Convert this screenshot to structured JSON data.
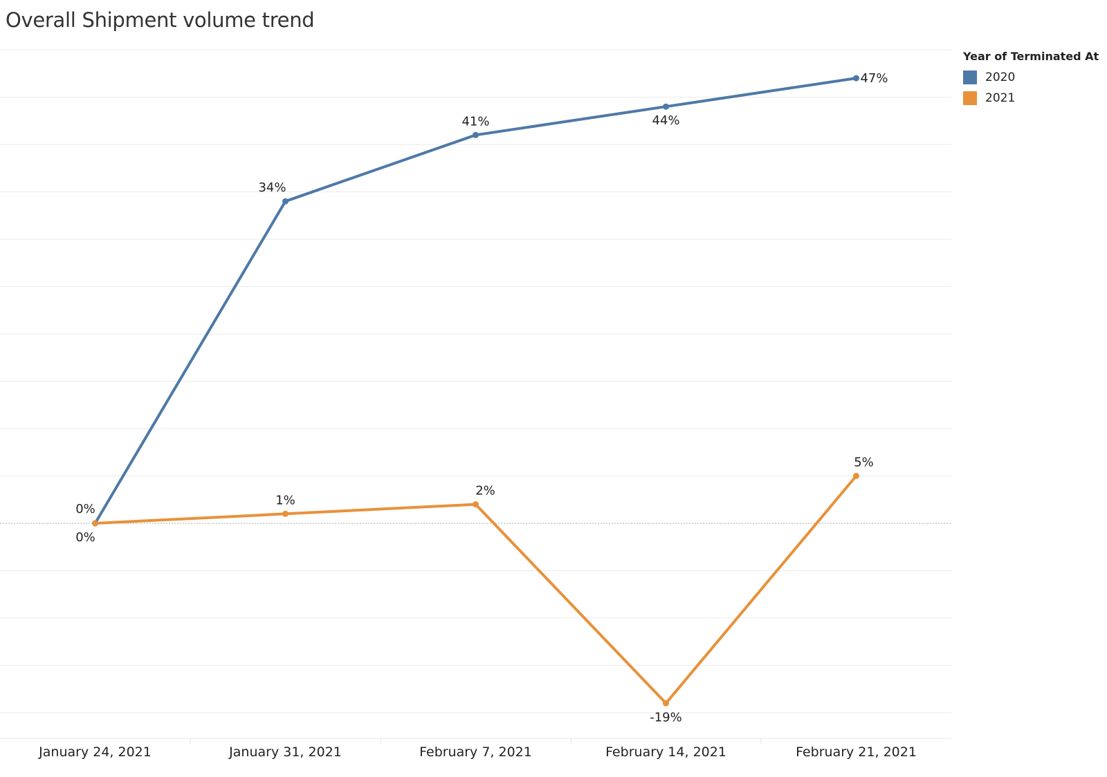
{
  "title": "Overall Shipment volume trend",
  "legend": {
    "title": "Year of Terminated At",
    "items": [
      {
        "label": "2020",
        "color": "#4e79a7"
      },
      {
        "label": "2021",
        "color": "#e8913a"
      }
    ]
  },
  "chart_data": {
    "type": "line",
    "categories": [
      "January 24, 2021",
      "January 31, 2021",
      "February 7, 2021",
      "February 14, 2021",
      "February 21, 2021"
    ],
    "series": [
      {
        "name": "2020",
        "color": "#4e79a7",
        "values": [
          0,
          34,
          41,
          44,
          47
        ],
        "labels": [
          "0%",
          "34%",
          "41%",
          "44%",
          "47%"
        ]
      },
      {
        "name": "2021",
        "color": "#e8913a",
        "values": [
          0,
          1,
          2,
          -19,
          5
        ],
        "labels": [
          "0%",
          "1%",
          "2%",
          "-19%",
          "5%"
        ]
      }
    ],
    "ylim": [
      -23,
      50
    ],
    "grid": true,
    "legend_position": "top-right",
    "xlabel": "",
    "ylabel": ""
  }
}
